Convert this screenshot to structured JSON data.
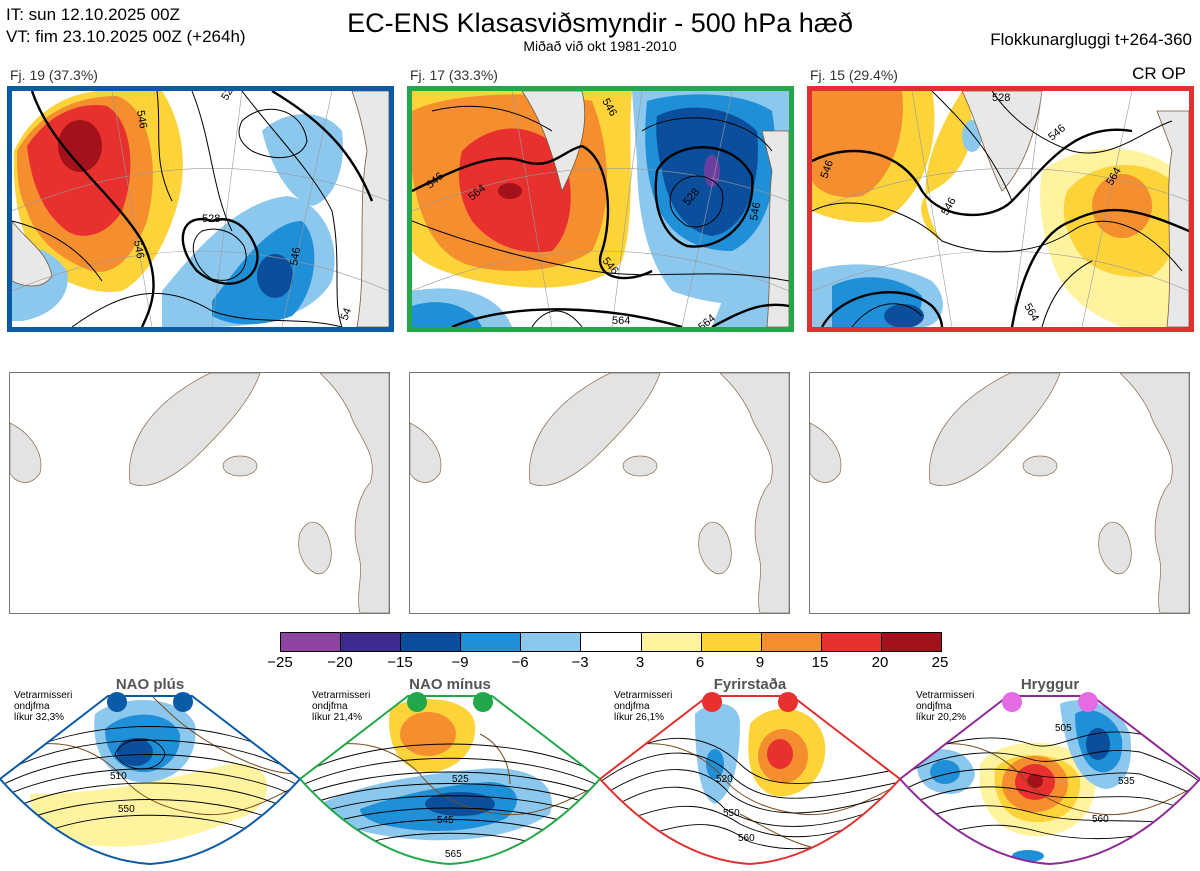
{
  "header": {
    "init_time": "IT: sun 12.10.2025 00Z",
    "valid_time": "VT: fim 23.10.2025 00Z  (+264h)",
    "title": "EC-ENS Klasasviðsmyndir - 500 hPa hæð",
    "subtitle": "Miðað við okt 1981-2010",
    "window": "Flokkunargluggi t+264-360",
    "cr_label": "CR OP"
  },
  "clusters": [
    {
      "label": "Fj. 19 (37.3%)",
      "color": "#0b5aa8",
      "contours": [
        "546",
        "528",
        "546",
        "546",
        "528",
        "54"
      ]
    },
    {
      "label": "Fj. 17 (33.3%)",
      "color": "#22a84a",
      "contours": [
        "546",
        "546",
        "564",
        "528",
        "546",
        "546",
        "564",
        "564"
      ]
    },
    {
      "label": "Fj. 15 (29.4%)",
      "color": "#e03030",
      "contours": [
        "528",
        "546",
        "546",
        "546",
        "564",
        "564"
      ]
    }
  ],
  "colorbar": {
    "ticks": [
      "−25",
      "−20",
      "−15",
      "−9",
      "−6",
      "−3",
      "3",
      "6",
      "9",
      "15",
      "20",
      "25"
    ],
    "colors": [
      "#8e44a0",
      "#3f2a8e",
      "#0b4f9c",
      "#1f8fd8",
      "#8cc8ee",
      "#ffffff",
      "#fff3a0",
      "#fdd33a",
      "#f58e2e",
      "#e8302e",
      "#a3121a"
    ]
  },
  "regimes": [
    {
      "name": "NAO plús",
      "info_line1": "Vetrarmisseri",
      "info_line2": "ondjfma",
      "info_line3": "líkur 32,3%",
      "color": "#0b5aa8",
      "contours": [
        "510",
        "550"
      ]
    },
    {
      "name": "NAO mínus",
      "info_line1": "Vetrarmisseri",
      "info_line2": "ondjfma",
      "info_line3": "líkur 21,4%",
      "color": "#22a84a",
      "contours": [
        "525",
        "545",
        "565"
      ]
    },
    {
      "name": "Fyrirstaða",
      "info_line1": "Vetrarmisseri",
      "info_line2": "ondjfma",
      "info_line3": "líkur 26,1%",
      "color": "#e03030",
      "contours": [
        "520",
        "550",
        "560"
      ]
    },
    {
      "name": "Hryggur",
      "info_line1": "Vetrarmisseri",
      "info_line2": "ondjfma",
      "info_line3": "líkur 20,2%",
      "color": "#8e2a96",
      "contours": [
        "505",
        "535",
        "560"
      ]
    }
  ]
}
